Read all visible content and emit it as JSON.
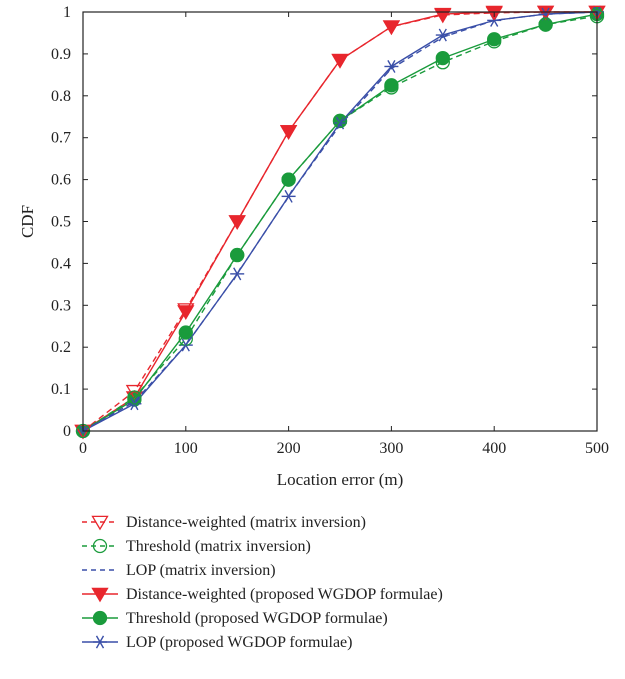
{
  "chart_data": {
    "type": "line",
    "xlabel": "Location error (m)",
    "ylabel": "CDF",
    "xlim": [
      0,
      500
    ],
    "ylim": [
      0,
      1
    ],
    "xticks": [
      0,
      100,
      200,
      300,
      400,
      500
    ],
    "yticks": [
      0,
      0.1,
      0.2,
      0.3,
      0.4,
      0.5,
      0.6,
      0.7,
      0.8,
      0.9,
      1
    ],
    "x": [
      0,
      50,
      100,
      150,
      200,
      250,
      300,
      350,
      400,
      450,
      500
    ],
    "grid": false,
    "legend_position": "below",
    "series": [
      {
        "name": "Distance-weighted (matrix inversion)",
        "color": "#e8262d",
        "dash": true,
        "marker": "triangle-down-open",
        "values": [
          0,
          0.095,
          0.29,
          0.5,
          0.715,
          0.885,
          0.965,
          0.993,
          0.998,
          1.0,
          1.0
        ]
      },
      {
        "name": "Threshold (matrix inversion)",
        "color": "#1a9b3c",
        "dash": true,
        "marker": "circle-open",
        "values": [
          0,
          0.08,
          0.22,
          0.42,
          0.6,
          0.74,
          0.82,
          0.88,
          0.93,
          0.97,
          0.99
        ]
      },
      {
        "name": "LOP (matrix inversion)",
        "color": "#3a4fa8",
        "dash": true,
        "marker": "none",
        "values": [
          0,
          0.07,
          0.205,
          0.375,
          0.56,
          0.73,
          0.865,
          0.94,
          0.98,
          0.995,
          1.0
        ]
      },
      {
        "name": "Distance-weighted (proposed WGDOP formulae)",
        "color": "#e8262d",
        "dash": false,
        "marker": "triangle-down-filled",
        "values": [
          0,
          0.08,
          0.285,
          0.5,
          0.715,
          0.885,
          0.965,
          0.995,
          1.0,
          1.0,
          1.0
        ]
      },
      {
        "name": "Threshold (proposed WGDOP formulae)",
        "color": "#1a9b3c",
        "dash": false,
        "marker": "circle-filled",
        "values": [
          0,
          0.075,
          0.235,
          0.42,
          0.6,
          0.74,
          0.825,
          0.89,
          0.935,
          0.97,
          0.995
        ]
      },
      {
        "name": "LOP (proposed WGDOP formulae)",
        "color": "#3a4fa8",
        "dash": false,
        "marker": "star",
        "values": [
          0,
          0.065,
          0.205,
          0.375,
          0.56,
          0.735,
          0.87,
          0.945,
          0.98,
          0.995,
          1.0
        ]
      }
    ]
  }
}
